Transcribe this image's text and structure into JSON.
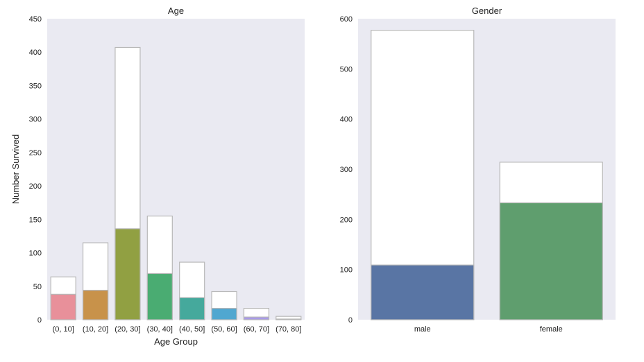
{
  "chart_data": [
    {
      "type": "bar",
      "title": "Age",
      "xlabel": "Age Group",
      "ylabel": "Number Survived",
      "ylim": [
        0,
        450
      ],
      "yticks": [
        0,
        50,
        100,
        150,
        200,
        250,
        300,
        350,
        400,
        450
      ],
      "categories": [
        "(0, 10]",
        "(10, 20]",
        "(20, 30]",
        "(30, 40]",
        "(40, 50]",
        "(50, 60]",
        "(60, 70]",
        "(70, 80]"
      ],
      "series": [
        {
          "values": [
            64,
            115,
            407,
            155,
            86,
            42,
            17,
            5
          ],
          "color": "#ffffff"
        },
        {
          "values": [
            38,
            44,
            136,
            69,
            33,
            17,
            4,
            1
          ],
          "colors": [
            "#e8909a",
            "#c8924a",
            "#91a042",
            "#4aac72",
            "#45a99c",
            "#50a7d0",
            "#a99be8",
            "#e88ab9"
          ]
        }
      ],
      "grid": false,
      "stacked": false,
      "overlay": true,
      "background": "#eaeaf2"
    },
    {
      "type": "bar",
      "title": "Gender",
      "xlabel": "",
      "ylabel": "",
      "ylim": [
        0,
        600
      ],
      "yticks": [
        0,
        100,
        200,
        300,
        400,
        500,
        600
      ],
      "categories": [
        "male",
        "female"
      ],
      "series": [
        {
          "values": [
            577,
            314
          ],
          "color": "#ffffff"
        },
        {
          "values": [
            109,
            233
          ],
          "colors": [
            "#5975a4",
            "#5f9e6e"
          ]
        }
      ],
      "grid": false,
      "stacked": false,
      "overlay": true,
      "background": "#eaeaf2"
    }
  ]
}
